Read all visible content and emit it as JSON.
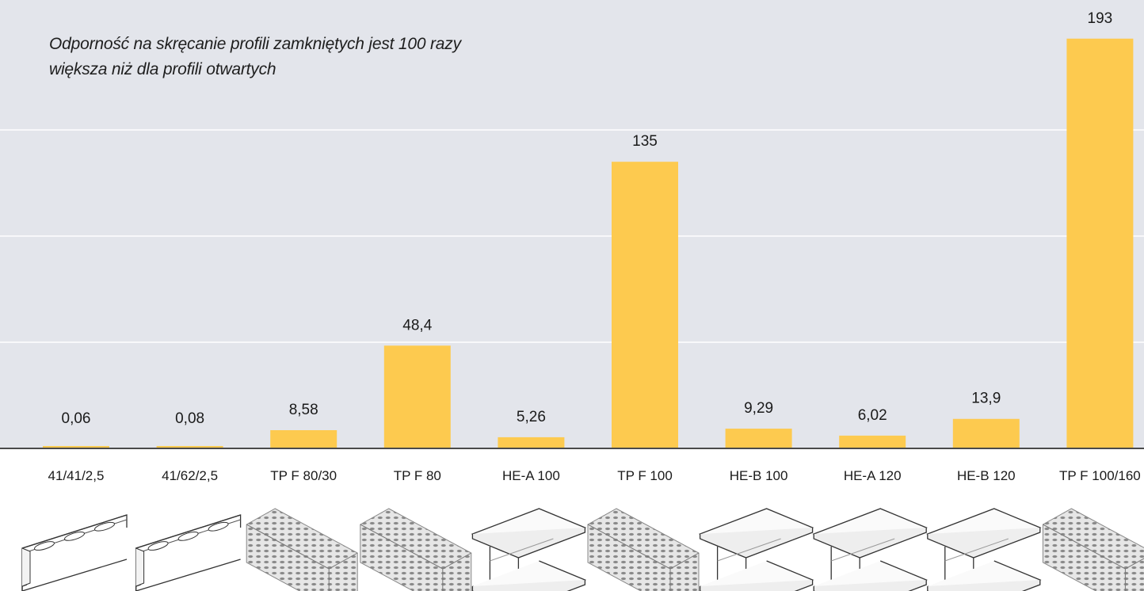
{
  "chart_data": {
    "type": "bar",
    "annotation": [
      "Odporność na skręcanie profili zamkniętych jest 100 razy",
      "większa niż dla profili otwartych"
    ],
    "categories": [
      "41/41/2,5",
      "41/62/2,5",
      "TP F 80/30",
      "TP F 80",
      "HE-A 100",
      "TP F 100",
      "HE-B 100",
      "HE-A 120",
      "HE-B 120",
      "TP F 100/160"
    ],
    "values": [
      0.06,
      0.08,
      8.58,
      48.4,
      5.26,
      135,
      9.29,
      6.02,
      13.9,
      193
    ],
    "value_labels": [
      "0,06",
      "0,08",
      "8,58",
      "48,4",
      "5,26",
      "135",
      "9,29",
      "6,02",
      "13,9",
      "193"
    ],
    "profile_icons": [
      "c-channel-slotted-icon",
      "c-channel-slotted-icon",
      "closed-profile-perforated-icon",
      "closed-profile-perforated-icon",
      "i-beam-icon",
      "closed-profile-perforated-icon",
      "i-beam-icon",
      "i-beam-icon",
      "i-beam-icon",
      "closed-profile-perforated-icon"
    ],
    "ylim": [
      0,
      200
    ],
    "grid": true,
    "xlabel": "",
    "ylabel": "",
    "colors": {
      "bar": "#fdca4f",
      "background": "#e3e5eb",
      "grid": "#ffffff",
      "axis": "#4a4a4a"
    }
  }
}
